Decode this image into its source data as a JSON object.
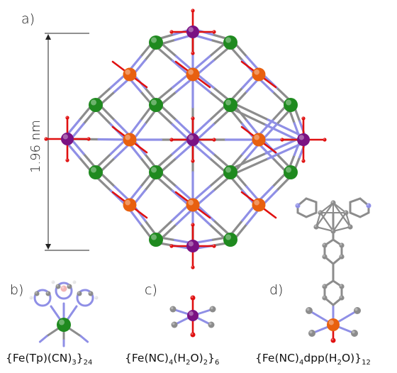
{
  "labels": {
    "a": "a)",
    "b": "b)",
    "c": "c)",
    "d": "d)"
  },
  "dimension": {
    "value": "1.96 nm"
  },
  "captions": {
    "b": {
      "prefix": "{Fe(Tp)(CN)",
      "s1": "3",
      "mid": "}",
      "s2": "24"
    },
    "c": {
      "prefix": "{Fe(NC)",
      "s1": "4",
      "mid1": "(H",
      "s2": "2",
      "mid2": "O)",
      "s3": "2",
      "mid3": "}",
      "s4": "6"
    },
    "d": {
      "prefix": "{Fe(NC)",
      "s1": "4",
      "mid1": "dpp(H",
      "s2": "2",
      "mid2": "O)}",
      "s3": "12"
    }
  },
  "colors": {
    "fe_green": "#1f8a1f",
    "fe_orange": "#e8600f",
    "fe_purple": "#7a1283",
    "carbon": "#8c8c8c",
    "nitrogen": "#8f8fe6",
    "oxygen": "#e01010",
    "hydrogen": "#e6e6e6",
    "boron": "#f2b5b5"
  }
}
